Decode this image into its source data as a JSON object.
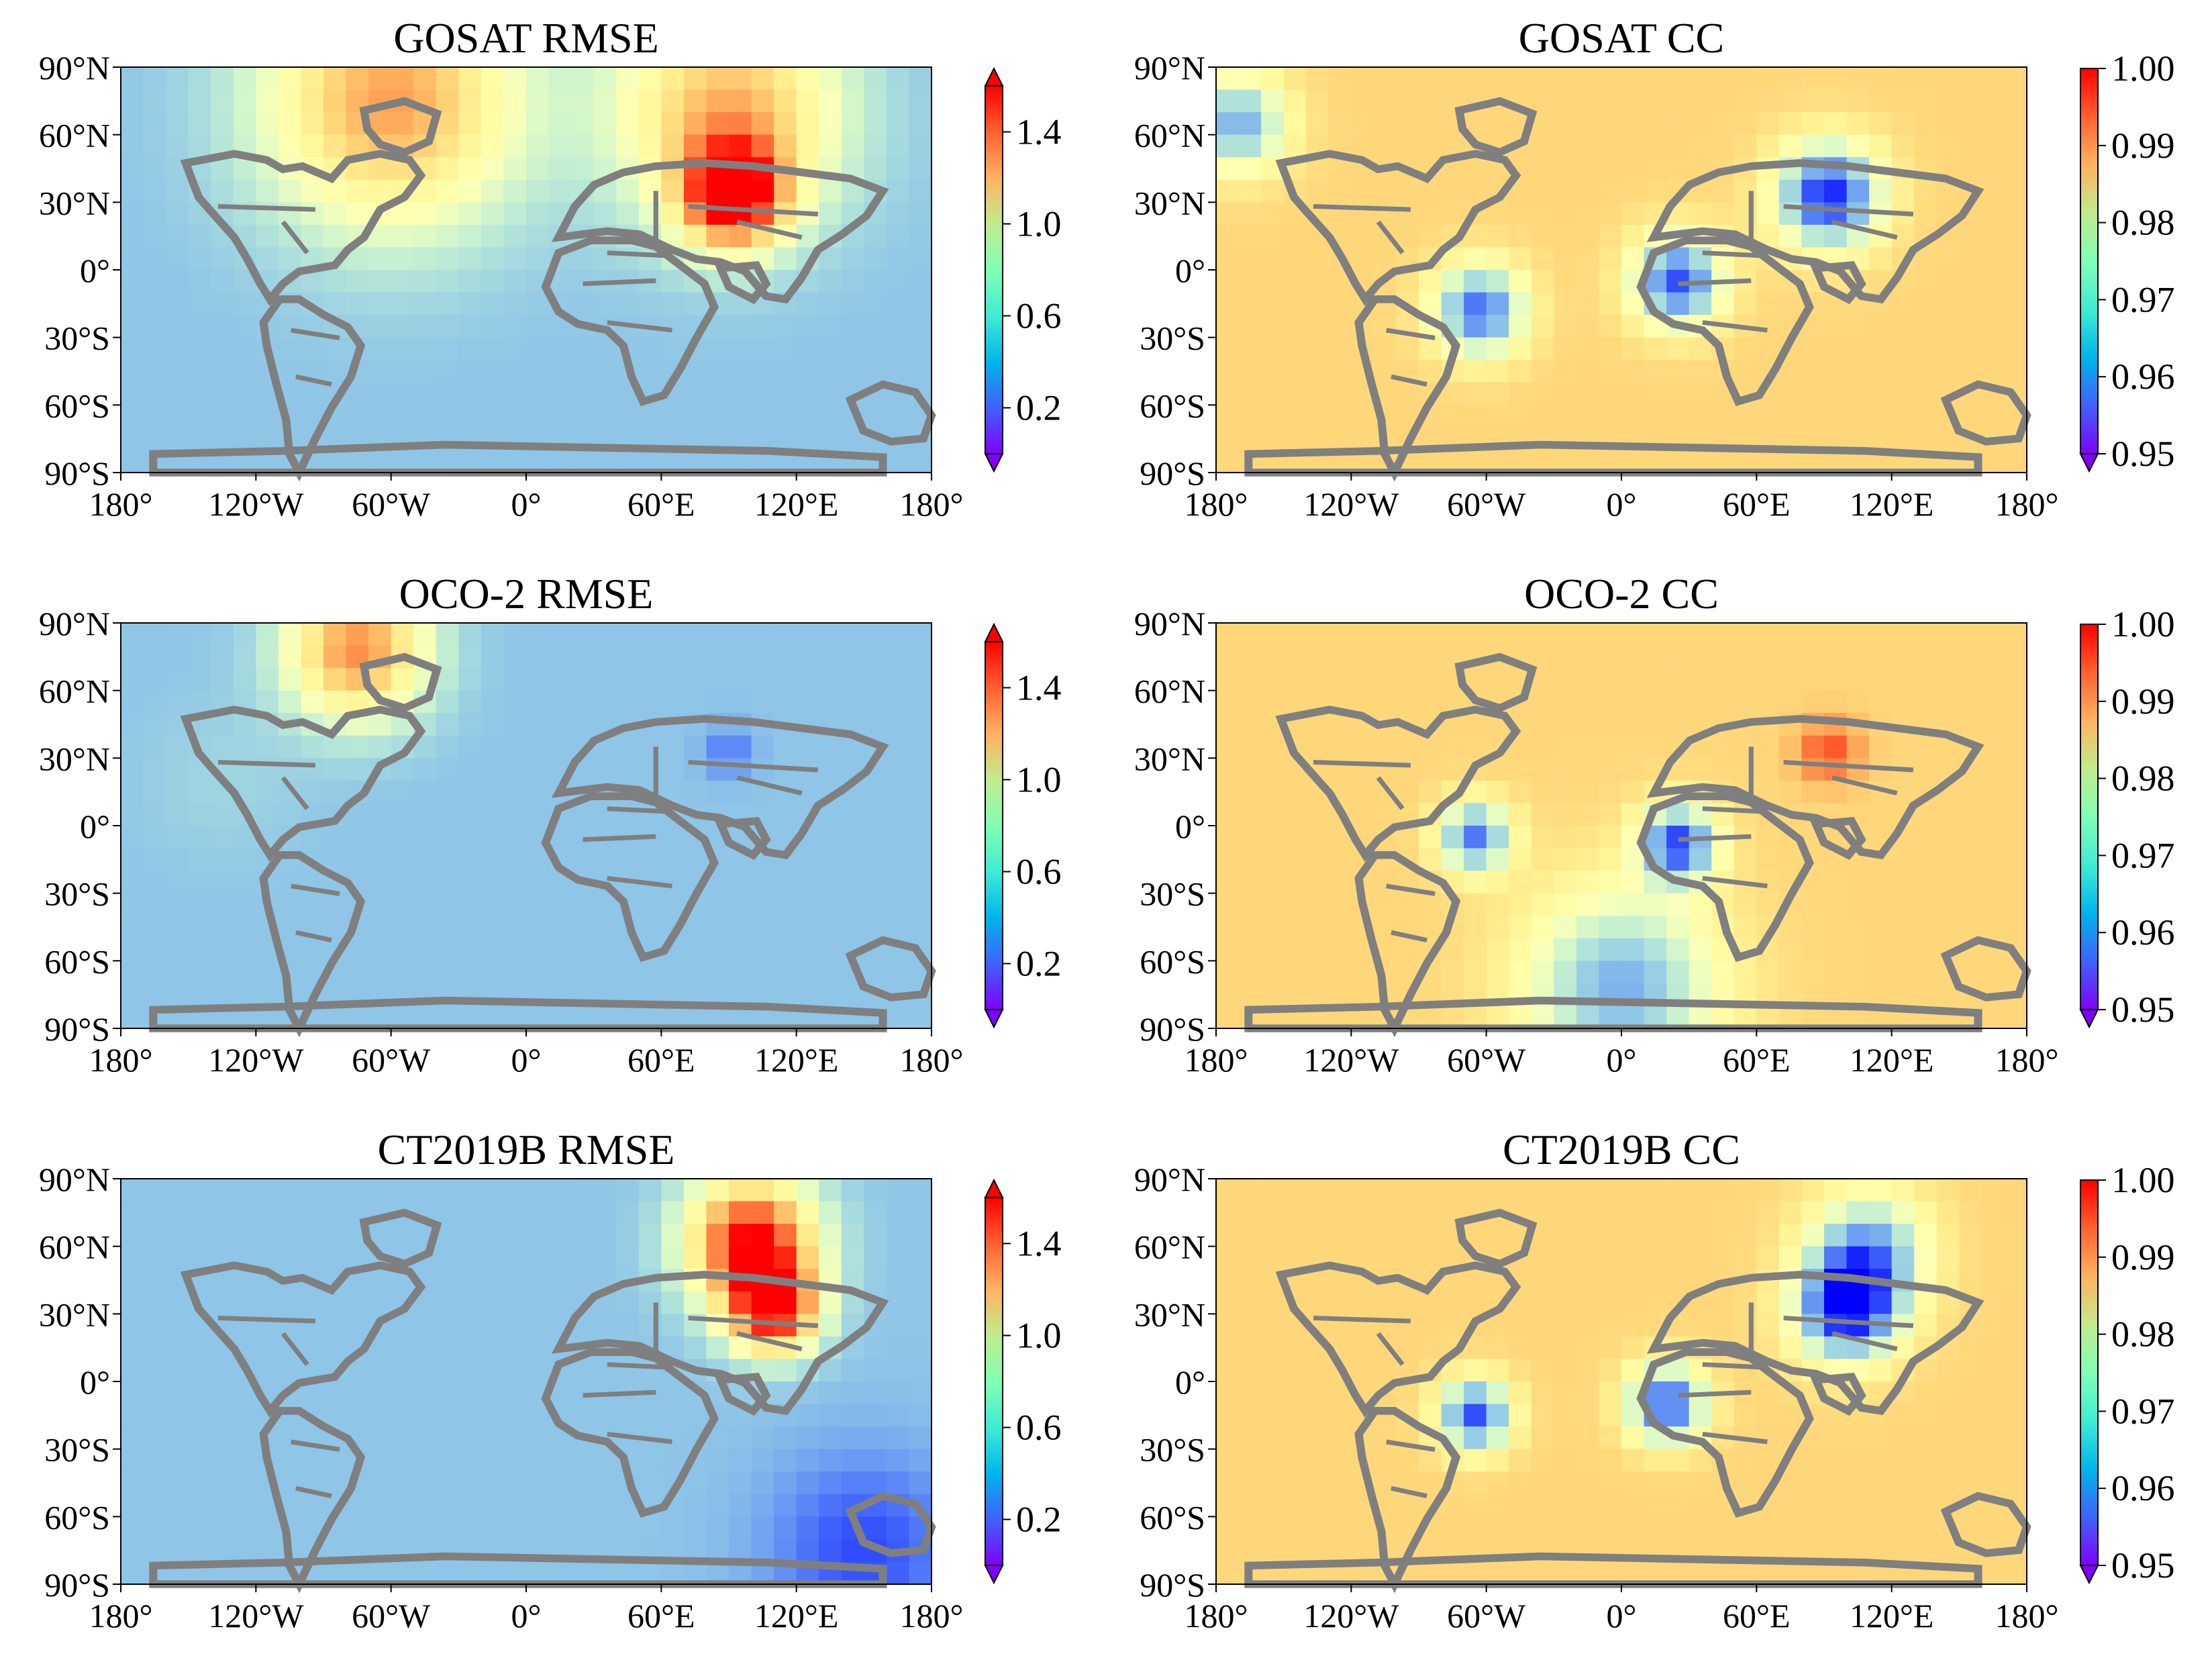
{
  "chart_data": {
    "type": "heatmap",
    "panels": [
      {
        "id": "gosat-rmse",
        "title": "GOSAT RMSE",
        "metric": "rmse",
        "hotspots": [
          {
            "lon": 92,
            "lat": 33,
            "value": 1.55,
            "spread": 16
          },
          {
            "lon": -60,
            "lat": 75,
            "value": 1.25,
            "spread": 40
          },
          {
            "lon": 90,
            "lat": 70,
            "value": 1.2,
            "spread": 35
          }
        ]
      },
      {
        "id": "gosat-cc",
        "title": "GOSAT CC",
        "metric": "cc",
        "hotspots": [
          {
            "lon": 92,
            "lat": 33,
            "value": 0.952,
            "spread": 16
          },
          {
            "lon": 25,
            "lat": -5,
            "value": 0.955,
            "spread": 14
          },
          {
            "lon": -63,
            "lat": -18,
            "value": 0.957,
            "spread": 14
          },
          {
            "lon": -170,
            "lat": 65,
            "value": 0.962,
            "spread": 15
          }
        ]
      },
      {
        "id": "oco2-rmse",
        "title": "OCO-2 RMSE",
        "metric": "rmse",
        "hotspots": [
          {
            "lon": -75,
            "lat": 78,
            "value": 1.3,
            "spread": 22
          },
          {
            "lon": -135,
            "lat": 20,
            "value": 0.5,
            "spread": 25
          },
          {
            "lon": 90,
            "lat": 33,
            "value": 0.25,
            "spread": 8
          }
        ]
      },
      {
        "id": "oco2-cc",
        "title": "OCO-2 CC",
        "metric": "cc",
        "hotspots": [
          {
            "lon": 92,
            "lat": 33,
            "value": 0.995,
            "spread": 10
          },
          {
            "lon": 25,
            "lat": -8,
            "value": 0.955,
            "spread": 12
          },
          {
            "lon": -65,
            "lat": -5,
            "value": 0.958,
            "spread": 11
          },
          {
            "lon": 0,
            "lat": -72,
            "value": 0.962,
            "spread": 30
          }
        ]
      },
      {
        "id": "ct2019b-rmse",
        "title": "CT2019B RMSE",
        "metric": "rmse",
        "hotspots": [
          {
            "lon": 100,
            "lat": 62,
            "value": 1.6,
            "spread": 20
          },
          {
            "lon": 110,
            "lat": 32,
            "value": 1.5,
            "spread": 14
          },
          {
            "lon": 150,
            "lat": -75,
            "value": 0.15,
            "spread": 30
          }
        ]
      },
      {
        "id": "ct2019b-cc",
        "title": "CT2019B CC",
        "metric": "cc",
        "hotspots": [
          {
            "lon": 100,
            "lat": 32,
            "value": 0.952,
            "spread": 16
          },
          {
            "lon": 20,
            "lat": -10,
            "value": 0.955,
            "spread": 12
          },
          {
            "lon": -65,
            "lat": -15,
            "value": 0.955,
            "spread": 11
          },
          {
            "lon": 110,
            "lat": 58,
            "value": 0.962,
            "spread": 18
          }
        ]
      }
    ],
    "xticks": [
      "180°",
      "120°W",
      "60°W",
      "0°",
      "60°E",
      "120°E",
      "180°"
    ],
    "yticks": [
      "90°N",
      "60°N",
      "30°N",
      "0°",
      "30°S",
      "60°S",
      "90°S"
    ],
    "colorbars": {
      "rmse": {
        "ticks": [
          "1.4",
          "1.0",
          "0.6",
          "0.2"
        ],
        "tick_values": [
          1.4,
          1.0,
          0.6,
          0.2
        ],
        "range": [
          0.0,
          1.6
        ],
        "extend": "both"
      },
      "cc": {
        "ticks": [
          "1.00",
          "0.99",
          "0.98",
          "0.97",
          "0.96",
          "0.95"
        ],
        "tick_values": [
          1.0,
          0.99,
          0.98,
          0.97,
          0.96,
          0.95
        ],
        "range": [
          0.95,
          1.0
        ],
        "extend": "min"
      }
    },
    "colormap": "rainbow",
    "coastline_color": "#7f7f7f"
  }
}
